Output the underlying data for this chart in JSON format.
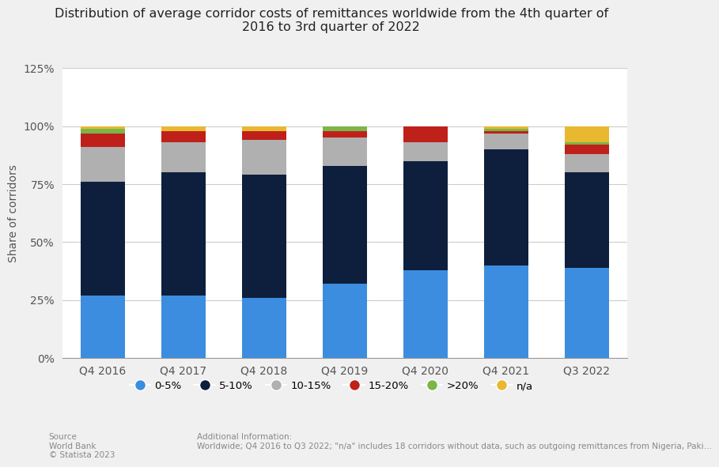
{
  "title": "Distribution of average corridor costs of remittances worldwide from the 4th quarter of\n2016 to 3rd quarter of 2022",
  "ylabel": "Share of corridors",
  "categories": [
    "Q4 2016",
    "Q4 2017",
    "Q4 2018",
    "Q4 2019",
    "Q4 2020",
    "Q4 2021",
    "Q3 2022"
  ],
  "series": {
    "0-5%": [
      27,
      27,
      26,
      32,
      38,
      40,
      39
    ],
    "5-10%": [
      49,
      53,
      53,
      51,
      47,
      50,
      41
    ],
    "10-15%": [
      15,
      13,
      15,
      12,
      8,
      7,
      8
    ],
    "15-20%": [
      6,
      5,
      4,
      3,
      7,
      1,
      4
    ],
    ">20%": [
      2,
      0,
      0,
      2,
      0,
      1,
      1
    ],
    "n/a": [
      1,
      2,
      2,
      0,
      0,
      1,
      7
    ]
  },
  "colors": {
    "0-5%": "#3c8ddf",
    "5-10%": "#0d1f3c",
    "10-15%": "#b0b0b0",
    "15-20%": "#c0201a",
    ">20%": "#7ab648",
    "n/a": "#e8b830"
  },
  "ylim": [
    0,
    125
  ],
  "yticks": [
    0,
    25,
    50,
    75,
    100,
    125
  ],
  "ytick_labels": [
    "0%",
    "25%",
    "50%",
    "75%",
    "100%",
    "125%"
  ],
  "background_color": "#f0f0f0",
  "plot_background": "#ffffff",
  "source_text": "Source\nWorld Bank\n© Statista 2023",
  "additional_text": "Additional Information:\nWorldwide; Q4 2016 to Q3 2022; \"n/a\" includes 18 corridors without data, such as outgoing remittances from Nigeria, Paki..."
}
